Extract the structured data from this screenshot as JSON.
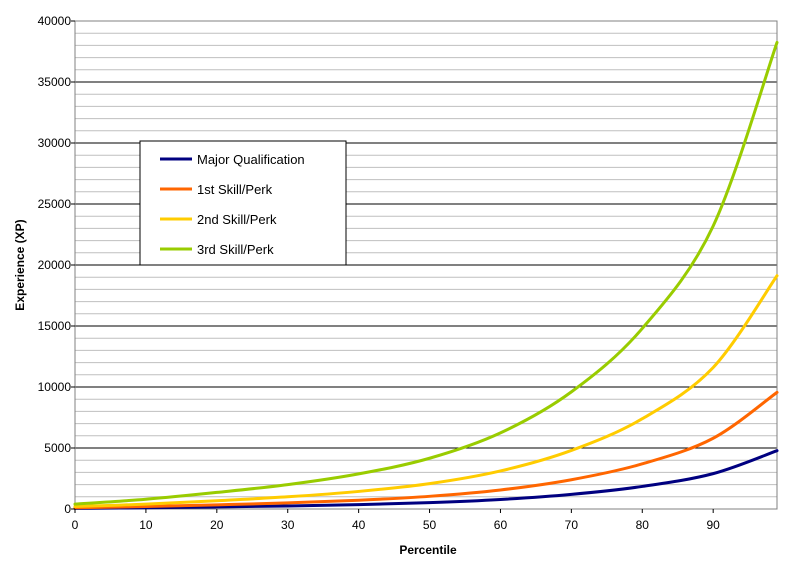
{
  "chart_data": {
    "type": "line",
    "title": "",
    "xlabel": "Percentile",
    "ylabel": "Experience (XP)",
    "xlim": [
      0,
      99
    ],
    "ylim": [
      0,
      40000
    ],
    "x_ticks": [
      0,
      10,
      20,
      30,
      40,
      50,
      60,
      70,
      80,
      90
    ],
    "y_ticks": [
      0,
      5000,
      10000,
      15000,
      20000,
      25000,
      30000,
      35000,
      40000
    ],
    "minor_grid_step": 1000,
    "grid": true,
    "legend_position": "upper-left",
    "x": [
      0,
      10,
      20,
      30,
      40,
      50,
      60,
      70,
      80,
      90,
      99
    ],
    "series": [
      {
        "name": "Major Qualification",
        "color": "#000080",
        "values": [
          50,
          100,
          170,
          250,
          360,
          520,
          780,
          1200,
          1850,
          2900,
          4780
        ]
      },
      {
        "name": "1st Skill/Perk",
        "color": "#FF6600",
        "values": [
          100,
          200,
          340,
          500,
          720,
          1040,
          1560,
          2400,
          3700,
          5800,
          9560
        ]
      },
      {
        "name": "2nd Skill/Perk",
        "color": "#FFCC00",
        "values": [
          200,
          400,
          680,
          1000,
          1440,
          2080,
          3120,
          4800,
          7400,
          11600,
          19120
        ]
      },
      {
        "name": "3rd Skill/Perk",
        "color": "#99CC00",
        "values": [
          400,
          800,
          1360,
          2000,
          2880,
          4160,
          6240,
          9600,
          14800,
          23200,
          38240
        ]
      }
    ]
  }
}
